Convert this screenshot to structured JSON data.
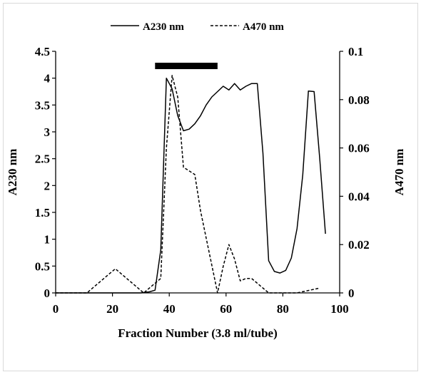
{
  "chart_data": {
    "type": "line",
    "xlabel": "Fraction Number (3.8 ml/tube)",
    "ylabel_left": "A230 nm",
    "ylabel_right": "A470 nm",
    "xlim": [
      0,
      100
    ],
    "xticks": [
      0,
      20,
      40,
      60,
      80,
      100
    ],
    "ylim_left": [
      0,
      4.5
    ],
    "yticks_left": [
      "0",
      "0.5",
      "1",
      "1.5",
      "2",
      "2.5",
      "3",
      "3.5",
      "4",
      "4.5"
    ],
    "ylim_right": [
      0,
      0.1
    ],
    "yticks_right": [
      "0",
      "0.02",
      "0.04",
      "0.06",
      "0.08",
      "0.1"
    ],
    "grid": false,
    "legend_position": "top-center",
    "highlight_bar": {
      "x_start": 35,
      "x_end": 57
    },
    "series": [
      {
        "name": "A230 nm",
        "axis": "left",
        "style": "solid",
        "color": "#000000",
        "x": [
          0,
          10,
          20,
          30,
          33,
          35,
          37,
          39,
          41,
          43,
          45,
          47,
          49,
          51,
          53,
          55,
          57,
          59,
          61,
          63,
          65,
          67,
          69,
          71,
          73,
          75,
          77,
          79,
          81,
          83,
          85,
          87,
          89,
          91,
          93,
          95
        ],
        "y": [
          0,
          0,
          0,
          0,
          0.02,
          0.05,
          0.8,
          4.0,
          3.8,
          3.3,
          3.02,
          3.05,
          3.15,
          3.3,
          3.5,
          3.65,
          3.75,
          3.85,
          3.78,
          3.9,
          3.78,
          3.85,
          3.9,
          3.9,
          2.6,
          0.6,
          0.4,
          0.37,
          0.42,
          0.65,
          1.2,
          2.2,
          3.76,
          3.75,
          2.5,
          1.1
        ]
      },
      {
        "name": "A470 nm",
        "axis": "right",
        "style": "dashed",
        "color": "#000000",
        "x": [
          0,
          11,
          21,
          31,
          35,
          37,
          39,
          41,
          43,
          45,
          49,
          51,
          57,
          59,
          61,
          63,
          65,
          67,
          69,
          75,
          85,
          89,
          93
        ],
        "y": [
          0,
          0,
          0.01,
          0,
          0.004,
          0.006,
          0.06,
          0.09,
          0.081,
          0.052,
          0.049,
          0.034,
          0,
          0.011,
          0.02,
          0.014,
          0.005,
          0.006,
          0.006,
          0,
          0,
          0.001,
          0.002
        ]
      }
    ]
  }
}
